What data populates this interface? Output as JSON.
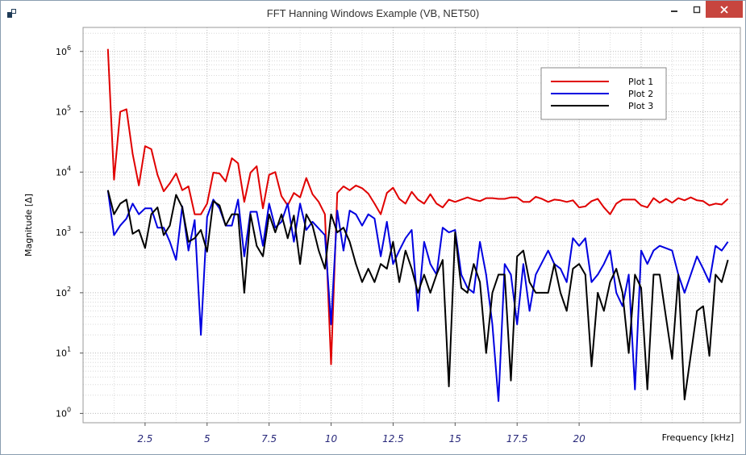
{
  "window": {
    "title": "FFT Hanning Windows Example (VB, NET50)",
    "icon": "app-icon",
    "controls": [
      "minimize-icon",
      "maximize-icon",
      "close-icon"
    ],
    "close_color": "#c7453e"
  },
  "chart_data": {
    "type": "line",
    "title": "",
    "xlabel": "Frequency [kHz]",
    "ylabel": "Magnitude [Δ]",
    "xscale": "linear",
    "yscale": "log",
    "xlim": [
      0,
      26.5
    ],
    "ylim": [
      0.7,
      2500000
    ],
    "xticks": [
      "2.5",
      "5",
      "7.5",
      "10",
      "12.5",
      "15",
      "17.5",
      "20"
    ],
    "yticks": [
      {
        "value": 1,
        "mantissa": "10",
        "exp": "0"
      },
      {
        "value": 10,
        "mantissa": "10",
        "exp": "1"
      },
      {
        "value": 100,
        "mantissa": "10",
        "exp": "2"
      },
      {
        "value": 1000,
        "mantissa": "10",
        "exp": "3"
      },
      {
        "value": 10000,
        "mantissa": "10",
        "exp": "4"
      },
      {
        "value": 100000,
        "mantissa": "10",
        "exp": "5"
      },
      {
        "value": 1000000,
        "mantissa": "10",
        "exp": "6"
      }
    ],
    "grid": true,
    "legend_position": "top-right",
    "series": [
      {
        "name": "Plot 1",
        "color": "#e00000",
        "points": [
          [
            1,
            1100000
          ],
          [
            1.25,
            7500
          ],
          [
            1.5,
            100000
          ],
          [
            1.75,
            110000
          ],
          [
            2,
            20000
          ],
          [
            2.25,
            6000
          ],
          [
            2.5,
            27000
          ],
          [
            2.75,
            24000
          ],
          [
            3,
            9000
          ],
          [
            3.25,
            4800
          ],
          [
            3.5,
            6500
          ],
          [
            3.75,
            9500
          ],
          [
            4,
            5000
          ],
          [
            4.25,
            5800
          ],
          [
            4.5,
            2000
          ],
          [
            4.75,
            2000
          ],
          [
            5,
            3000
          ],
          [
            5.25,
            9800
          ],
          [
            5.5,
            9500
          ],
          [
            5.75,
            7000
          ],
          [
            6,
            17000
          ],
          [
            6.25,
            14000
          ],
          [
            6.5,
            3200
          ],
          [
            6.75,
            9800
          ],
          [
            7,
            12500
          ],
          [
            7.25,
            2500
          ],
          [
            7.5,
            9000
          ],
          [
            7.75,
            10000
          ],
          [
            8,
            4000
          ],
          [
            8.25,
            2800
          ],
          [
            8.5,
            4500
          ],
          [
            8.75,
            3800
          ],
          [
            9,
            8000
          ],
          [
            9.25,
            4300
          ],
          [
            9.5,
            3200
          ],
          [
            9.75,
            2000
          ],
          [
            10,
            6.5
          ],
          [
            10.25,
            4500
          ],
          [
            10.5,
            5800
          ],
          [
            10.75,
            5000
          ],
          [
            11,
            6000
          ],
          [
            11.25,
            5400
          ],
          [
            11.5,
            4400
          ],
          [
            11.75,
            3000
          ],
          [
            12,
            2000
          ],
          [
            12.25,
            4500
          ],
          [
            12.5,
            5500
          ],
          [
            12.75,
            3600
          ],
          [
            13,
            3000
          ],
          [
            13.25,
            4700
          ],
          [
            13.5,
            3500
          ],
          [
            13.75,
            3000
          ],
          [
            14,
            4300
          ],
          [
            14.25,
            3000
          ],
          [
            14.5,
            2600
          ],
          [
            14.75,
            3500
          ],
          [
            15,
            3200
          ],
          [
            15.25,
            3500
          ],
          [
            15.5,
            3800
          ],
          [
            15.75,
            3500
          ],
          [
            16,
            3300
          ],
          [
            16.25,
            3700
          ],
          [
            16.5,
            3700
          ],
          [
            16.75,
            3600
          ],
          [
            17,
            3600
          ],
          [
            17.25,
            3800
          ],
          [
            17.5,
            3800
          ],
          [
            17.75,
            3200
          ],
          [
            18,
            3200
          ],
          [
            18.25,
            3900
          ],
          [
            18.5,
            3600
          ],
          [
            18.75,
            3200
          ],
          [
            19,
            3500
          ],
          [
            19.25,
            3400
          ],
          [
            19.5,
            3200
          ],
          [
            19.75,
            3400
          ],
          [
            20,
            2600
          ],
          [
            20.25,
            2700
          ],
          [
            20.5,
            3300
          ],
          [
            20.75,
            3600
          ],
          [
            21,
            2600
          ],
          [
            21.25,
            2000
          ],
          [
            21.5,
            3000
          ],
          [
            21.75,
            3500
          ],
          [
            22,
            3500
          ],
          [
            22.25,
            3500
          ],
          [
            22.5,
            2800
          ],
          [
            22.75,
            2600
          ],
          [
            23,
            3700
          ],
          [
            23.25,
            3100
          ],
          [
            23.5,
            3600
          ],
          [
            23.75,
            3100
          ],
          [
            24,
            3700
          ],
          [
            24.25,
            3400
          ],
          [
            24.5,
            3800
          ],
          [
            24.75,
            3400
          ],
          [
            25,
            3300
          ],
          [
            25.25,
            2800
          ],
          [
            25.5,
            3000
          ],
          [
            25.75,
            2900
          ],
          [
            26,
            3600
          ]
        ]
      },
      {
        "name": "Plot 2",
        "color": "#0000e0",
        "points": [
          [
            1,
            5000
          ],
          [
            1.25,
            900
          ],
          [
            1.5,
            1300
          ],
          [
            1.75,
            1700
          ],
          [
            2,
            3000
          ],
          [
            2.25,
            2000
          ],
          [
            2.5,
            2500
          ],
          [
            2.75,
            2500
          ],
          [
            3,
            1200
          ],
          [
            3.25,
            1200
          ],
          [
            3.5,
            700
          ],
          [
            3.75,
            350
          ],
          [
            4,
            2700
          ],
          [
            4.25,
            500
          ],
          [
            4.5,
            1600
          ],
          [
            4.75,
            20
          ],
          [
            5,
            1800
          ],
          [
            5.25,
            3500
          ],
          [
            5.5,
            2500
          ],
          [
            5.75,
            1300
          ],
          [
            6,
            1300
          ],
          [
            6.25,
            3500
          ],
          [
            6.5,
            400
          ],
          [
            6.75,
            2200
          ],
          [
            7,
            2200
          ],
          [
            7.25,
            600
          ],
          [
            7.5,
            3000
          ],
          [
            7.75,
            1200
          ],
          [
            8,
            1500
          ],
          [
            8.25,
            3000
          ],
          [
            8.5,
            700
          ],
          [
            8.75,
            3000
          ],
          [
            9,
            1100
          ],
          [
            9.25,
            1500
          ],
          [
            9.75,
            900
          ],
          [
            10,
            30
          ],
          [
            10.25,
            2300
          ],
          [
            10.5,
            500
          ],
          [
            10.75,
            2300
          ],
          [
            11,
            2000
          ],
          [
            11.25,
            1300
          ],
          [
            11.5,
            2000
          ],
          [
            11.75,
            1700
          ],
          [
            12,
            400
          ],
          [
            12.25,
            1500
          ],
          [
            12.5,
            300
          ],
          [
            12.75,
            500
          ],
          [
            13,
            800
          ],
          [
            13.25,
            1100
          ],
          [
            13.5,
            50
          ],
          [
            13.75,
            700
          ],
          [
            14,
            300
          ],
          [
            14.25,
            200
          ],
          [
            14.5,
            1200
          ],
          [
            14.75,
            1000
          ],
          [
            15,
            1100
          ],
          [
            15.25,
            200
          ],
          [
            15.5,
            120
          ],
          [
            15.75,
            100
          ],
          [
            16,
            700
          ],
          [
            16.25,
            200
          ],
          [
            16.5,
            30
          ],
          [
            16.75,
            1.6
          ],
          [
            17,
            300
          ],
          [
            17.25,
            200
          ],
          [
            17.5,
            30
          ],
          [
            17.75,
            300
          ],
          [
            18,
            50
          ],
          [
            18.25,
            200
          ],
          [
            18.75,
            500
          ],
          [
            19,
            300
          ],
          [
            19.25,
            250
          ],
          [
            19.5,
            150
          ],
          [
            19.75,
            800
          ],
          [
            20,
            600
          ],
          [
            20.25,
            800
          ],
          [
            20.5,
            150
          ],
          [
            20.75,
            200
          ],
          [
            21,
            300
          ],
          [
            21.25,
            500
          ],
          [
            21.5,
            100
          ],
          [
            21.75,
            60
          ],
          [
            22,
            200
          ],
          [
            22.25,
            2.5
          ],
          [
            22.5,
            500
          ],
          [
            22.75,
            300
          ],
          [
            23,
            500
          ],
          [
            23.25,
            600
          ],
          [
            23.75,
            500
          ],
          [
            24,
            200
          ],
          [
            24.25,
            100
          ],
          [
            24.75,
            400
          ],
          [
            25,
            250
          ],
          [
            25.25,
            150
          ],
          [
            25.5,
            600
          ],
          [
            25.75,
            500
          ],
          [
            26,
            700
          ]
        ]
      },
      {
        "name": "Plot 3",
        "color": "#000000",
        "points": [
          [
            1,
            5000
          ],
          [
            1.25,
            2000
          ],
          [
            1.5,
            3000
          ],
          [
            1.75,
            3500
          ],
          [
            2,
            950
          ],
          [
            2.25,
            1100
          ],
          [
            2.5,
            550
          ],
          [
            2.75,
            2000
          ],
          [
            3,
            2600
          ],
          [
            3.25,
            900
          ],
          [
            3.5,
            1300
          ],
          [
            3.75,
            4200
          ],
          [
            4,
            2600
          ],
          [
            4.25,
            700
          ],
          [
            4.5,
            800
          ],
          [
            4.75,
            1100
          ],
          [
            5,
            480
          ],
          [
            5.25,
            3300
          ],
          [
            5.5,
            2800
          ],
          [
            5.75,
            1300
          ],
          [
            6,
            2000
          ],
          [
            6.25,
            2000
          ],
          [
            6.5,
            100
          ],
          [
            6.75,
            2000
          ],
          [
            7,
            600
          ],
          [
            7.25,
            400
          ],
          [
            7.5,
            2000
          ],
          [
            7.75,
            1000
          ],
          [
            8,
            2000
          ],
          [
            8.25,
            800
          ],
          [
            8.5,
            1900
          ],
          [
            8.75,
            300
          ],
          [
            9,
            2000
          ],
          [
            9.25,
            1300
          ],
          [
            9.5,
            500
          ],
          [
            9.75,
            250
          ],
          [
            10,
            2000
          ],
          [
            10.25,
            1000
          ],
          [
            10.5,
            1200
          ],
          [
            10.75,
            700
          ],
          [
            11,
            300
          ],
          [
            11.25,
            150
          ],
          [
            11.5,
            250
          ],
          [
            11.75,
            150
          ],
          [
            12,
            300
          ],
          [
            12.25,
            250
          ],
          [
            12.5,
            700
          ],
          [
            12.75,
            150
          ],
          [
            13,
            500
          ],
          [
            13.25,
            250
          ],
          [
            13.5,
            100
          ],
          [
            13.75,
            200
          ],
          [
            14,
            100
          ],
          [
            14.25,
            200
          ],
          [
            14.5,
            350
          ],
          [
            14.75,
            2.8
          ],
          [
            15,
            1000
          ],
          [
            15.25,
            120
          ],
          [
            15.5,
            100
          ],
          [
            15.75,
            300
          ],
          [
            16,
            150
          ],
          [
            16.25,
            10
          ],
          [
            16.5,
            100
          ],
          [
            16.75,
            200
          ],
          [
            17,
            200
          ],
          [
            17.25,
            3.5
          ],
          [
            17.5,
            400
          ],
          [
            17.75,
            500
          ],
          [
            18,
            150
          ],
          [
            18.25,
            100
          ],
          [
            18.75,
            100
          ],
          [
            19,
            300
          ],
          [
            19.25,
            100
          ],
          [
            19.5,
            50
          ],
          [
            19.75,
            250
          ],
          [
            20,
            300
          ],
          [
            20.25,
            200
          ],
          [
            20.5,
            6
          ],
          [
            20.75,
            100
          ],
          [
            21,
            50
          ],
          [
            21.25,
            150
          ],
          [
            21.5,
            250
          ],
          [
            21.75,
            100
          ],
          [
            22,
            10
          ],
          [
            22.25,
            200
          ],
          [
            22.5,
            120
          ],
          [
            22.75,
            2.5
          ],
          [
            23,
            200
          ],
          [
            23.25,
            200
          ],
          [
            23.75,
            8
          ],
          [
            24,
            200
          ],
          [
            24.25,
            1.7
          ],
          [
            24.75,
            50
          ],
          [
            25,
            60
          ],
          [
            25.25,
            9
          ],
          [
            25.5,
            200
          ],
          [
            25.75,
            150
          ],
          [
            26,
            350
          ]
        ]
      }
    ]
  }
}
